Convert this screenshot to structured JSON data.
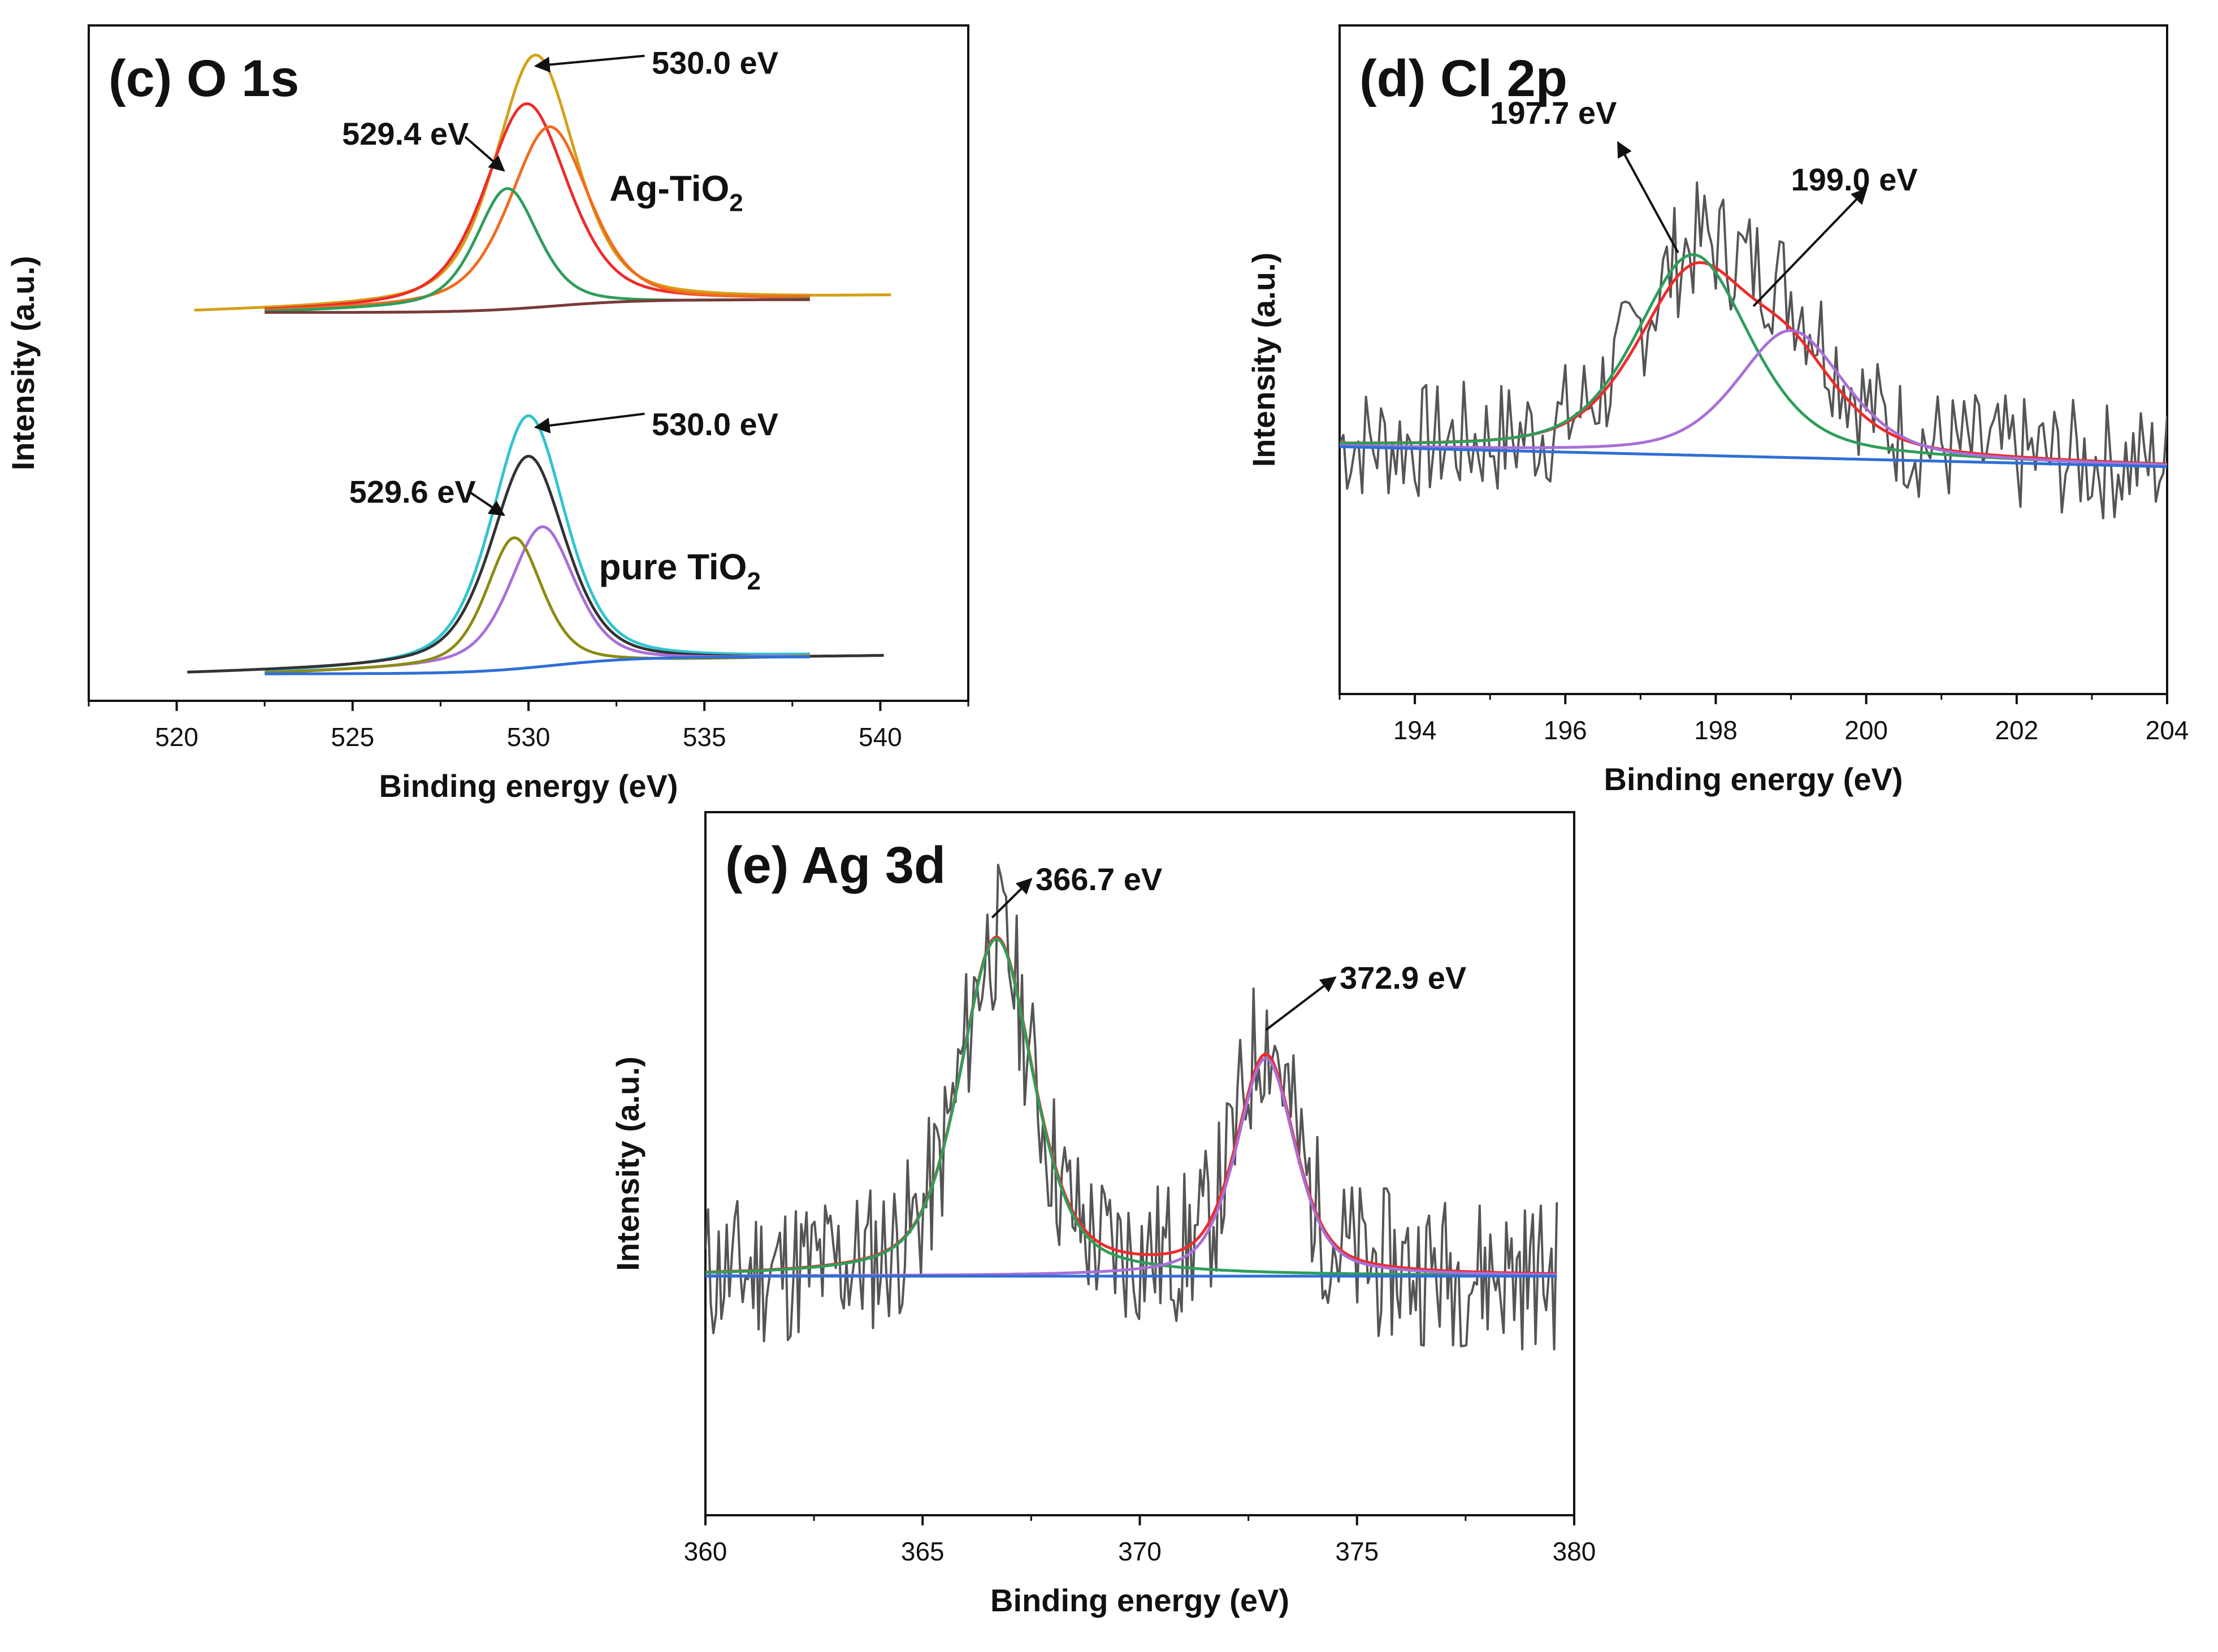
{
  "chart_data": [
    {
      "type": "line",
      "panel": "(c) O 1s",
      "xlabel": "Binding energy (eV)",
      "ylabel": "Intensity (a.u.)",
      "xlim": [
        517.5,
        542.5
      ],
      "ylim": [
        0,
        1
      ],
      "xticks": [
        520,
        525,
        530,
        535,
        540
      ],
      "sample_labels": [
        {
          "base": "Ag-TiO",
          "sub": "2",
          "x": 532.3,
          "y": 0.74
        },
        {
          "base": "pure TiO",
          "sub": "2",
          "x": 532.0,
          "y": 0.18
        }
      ],
      "annotations": [
        {
          "text": "530.0 eV",
          "from": [
            533.3,
            0.955
          ],
          "to": [
            530.2,
            0.94
          ],
          "tx": 533.5,
          "ty": 0.945
        },
        {
          "text": "529.4 eV",
          "from": [
            528.2,
            0.835
          ],
          "to": [
            529.3,
            0.785
          ],
          "tx": 524.7,
          "ty": 0.84
        },
        {
          "text": "530.0 eV",
          "from": [
            533.3,
            0.425
          ],
          "to": [
            530.2,
            0.405
          ],
          "tx": 533.5,
          "ty": 0.41
        },
        {
          "text": "529.6 eV",
          "from": [
            528.3,
            0.31
          ],
          "to": [
            529.3,
            0.275
          ],
          "tx": 524.9,
          "ty": 0.31
        }
      ],
      "series": [
        {
          "name": "Ag-TiO2 raw",
          "color": "#d4a017",
          "kind": "envelope",
          "start": 520.5,
          "end": 540.3,
          "base0": 0.575,
          "base1": 0.598,
          "peaks": [
            {
              "c": 530.2,
              "h": 0.37,
              "w": 2.7
            }
          ]
        },
        {
          "name": "Ag-TiO2 fit envelope",
          "color": "#ee2b2b",
          "kind": "envelope",
          "start": 522.5,
          "end": 538.0,
          "base0": 0.575,
          "base1": 0.594,
          "peaks": [
            {
              "c": 529.95,
              "h": 0.3,
              "w": 2.8
            }
          ]
        },
        {
          "name": "Ag-TiO2 peak 530.6",
          "color": "#f26b1d",
          "kind": "envelope",
          "start": 522.5,
          "end": 538.0,
          "base0": 0.575,
          "base1": 0.594,
          "peaks": [
            {
              "c": 530.6,
              "h": 0.265,
              "w": 2.7
            }
          ]
        },
        {
          "name": "Ag-TiO2 peak 529.4",
          "color": "#2e9e5a",
          "kind": "envelope",
          "start": 522.5,
          "end": 538.0,
          "base0": 0.575,
          "base1": 0.594,
          "peaks": [
            {
              "c": 529.4,
              "h": 0.175,
              "w": 2.1
            }
          ]
        },
        {
          "name": "Ag-TiO2 background",
          "color": "#7a3a3a",
          "kind": "step",
          "start": 522.5,
          "end": 538.0,
          "base0": 0.575,
          "base1": 0.594,
          "center": 530.7,
          "width": 1.2
        },
        {
          "name": "pure TiO2 raw",
          "color": "#2ec4cf",
          "kind": "envelope",
          "start": 522.5,
          "end": 538.0,
          "base0": 0.04,
          "base1": 0.065,
          "peaks": [
            {
              "c": 530.0,
              "h": 0.37,
              "w": 2.5
            }
          ]
        },
        {
          "name": "pure TiO2 fit envelope",
          "color": "#333333",
          "kind": "envelope",
          "start": 520.3,
          "end": 540.1,
          "base0": 0.04,
          "base1": 0.065,
          "peaks": [
            {
              "c": 530.0,
              "h": 0.31,
              "w": 2.5
            }
          ]
        },
        {
          "name": "pure TiO2 peak 530.4",
          "color": "#a86fd8",
          "kind": "envelope",
          "start": 522.5,
          "end": 538.0,
          "base0": 0.04,
          "base1": 0.065,
          "peaks": [
            {
              "c": 530.4,
              "h": 0.205,
              "w": 2.2
            }
          ]
        },
        {
          "name": "pure TiO2 peak 529.6",
          "color": "#8b8b12",
          "kind": "envelope",
          "start": 522.5,
          "end": 538.0,
          "base0": 0.04,
          "base1": 0.065,
          "peaks": [
            {
              "c": 529.6,
              "h": 0.19,
              "w": 1.9
            }
          ]
        },
        {
          "name": "pure TiO2 background",
          "color": "#2f6fd6",
          "kind": "step",
          "start": 522.5,
          "end": 538.0,
          "base0": 0.04,
          "base1": 0.065,
          "center": 530.7,
          "width": 1.2
        }
      ]
    },
    {
      "type": "line",
      "panel": "(d) Cl 2p",
      "xlabel": "Binding energy (eV)",
      "ylabel": "Intensity (a.u.)",
      "xlim": [
        193,
        204
      ],
      "ylim": [
        0,
        1
      ],
      "xticks": [
        194,
        196,
        198,
        200,
        202,
        204
      ],
      "annotations": [
        {
          "text": "197.7 eV",
          "from": [
            197.5,
            0.66
          ],
          "to": [
            196.7,
            0.825
          ],
          "tx": 195.0,
          "ty": 0.87
        },
        {
          "text": "199.0 eV",
          "from": [
            198.5,
            0.58
          ],
          "to": [
            200.0,
            0.755
          ],
          "tx": 199.0,
          "ty": 0.77
        }
      ],
      "series": [
        {
          "name": "raw",
          "color": "#555555",
          "kind": "noisy",
          "seed": 7,
          "points": 220,
          "base0": 0.37,
          "base1": 0.34,
          "noise": 0.09,
          "peaks": [
            {
              "c": 197.7,
              "h": 0.28,
              "w": 1.8
            },
            {
              "c": 199.0,
              "h": 0.17,
              "w": 1.6
            }
          ]
        },
        {
          "name": "fit envelope",
          "color": "#ee2b2b",
          "kind": "envelope",
          "start": 193.0,
          "end": 204.0,
          "base0": 0.37,
          "base1": 0.34,
          "peaks": [
            {
              "c": 197.7,
              "h": 0.26,
              "w": 1.8
            },
            {
              "c": 199.0,
              "h": 0.12,
              "w": 1.6
            }
          ]
        },
        {
          "name": "peak 197.7",
          "color": "#2e9e5a",
          "kind": "envelope",
          "start": 193.0,
          "end": 204.0,
          "base0": 0.37,
          "base1": 0.34,
          "peaks": [
            {
              "c": 197.7,
              "h": 0.3,
              "w": 1.8
            }
          ]
        },
        {
          "name": "peak 199.0",
          "color": "#a86fd8",
          "kind": "envelope",
          "start": 193.0,
          "end": 204.0,
          "base0": 0.37,
          "base1": 0.34,
          "peaks": [
            {
              "c": 199.0,
              "h": 0.19,
              "w": 1.7
            }
          ]
        },
        {
          "name": "background",
          "color": "#2f6fd6",
          "kind": "line",
          "start": 193.0,
          "end": 204.0,
          "base0": 0.37,
          "base1": 0.34
        }
      ]
    },
    {
      "type": "line",
      "panel": "(e) Ag 3d",
      "xlabel": "Binding energy (eV)",
      "ylabel": "Intensity (a.u.)",
      "xlim": [
        360,
        380
      ],
      "ylim": [
        0,
        1
      ],
      "xticks": [
        360,
        365,
        370,
        375,
        380
      ],
      "annotations": [
        {
          "text": "366.7 eV",
          "from": [
            366.6,
            0.85
          ],
          "to": [
            367.5,
            0.905
          ],
          "tx": 367.6,
          "ty": 0.905
        },
        {
          "text": "372.9 eV",
          "from": [
            372.9,
            0.69
          ],
          "to": [
            374.5,
            0.765
          ],
          "tx": 374.6,
          "ty": 0.765
        }
      ],
      "series": [
        {
          "name": "raw",
          "color": "#555555",
          "kind": "noisy",
          "seed": 11,
          "points": 320,
          "base0": 0.34,
          "base1": 0.34,
          "noise": 0.11,
          "start": 360.0,
          "end": 379.6,
          "peaks": [
            {
              "c": 366.7,
              "h": 0.48,
              "w": 2.0
            },
            {
              "c": 372.9,
              "h": 0.34,
              "w": 1.6
            }
          ]
        },
        {
          "name": "fit envelope",
          "color": "#ee2b2b",
          "kind": "envelope",
          "start": 360.0,
          "end": 379.6,
          "base0": 0.34,
          "base1": 0.34,
          "peaks": [
            {
              "c": 366.7,
              "h": 0.48,
              "w": 2.0
            },
            {
              "c": 372.9,
              "h": 0.31,
              "w": 1.6
            }
          ]
        },
        {
          "name": "peak 366.7",
          "color": "#2e9e5a",
          "kind": "envelope",
          "start": 360.0,
          "end": 379.6,
          "base0": 0.34,
          "base1": 0.34,
          "peaks": [
            {
              "c": 366.7,
              "h": 0.48,
              "w": 2.0
            }
          ]
        },
        {
          "name": "peak 372.9",
          "color": "#a86fd8",
          "kind": "envelope",
          "start": 360.0,
          "end": 379.6,
          "base0": 0.34,
          "base1": 0.34,
          "peaks": [
            {
              "c": 372.9,
              "h": 0.31,
              "w": 1.6
            }
          ]
        },
        {
          "name": "background",
          "color": "#2f6fd6",
          "kind": "line",
          "start": 360.0,
          "end": 379.6,
          "base0": 0.34,
          "base1": 0.34
        }
      ]
    }
  ]
}
